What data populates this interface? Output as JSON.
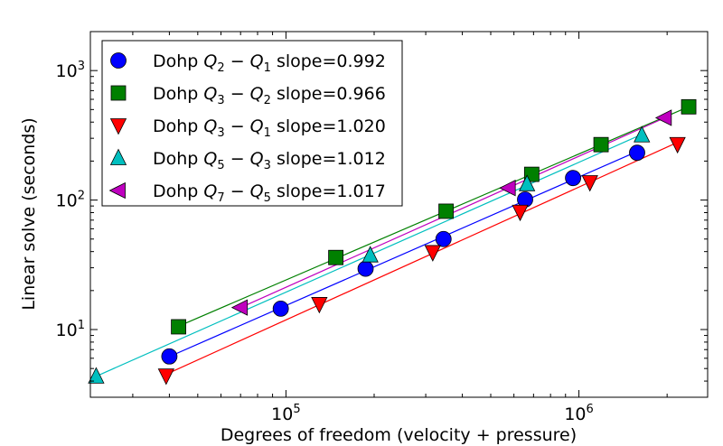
{
  "chart_data": {
    "type": "scatter",
    "title": "",
    "xlabel": "Degrees of freedom (velocity + pressure)",
    "ylabel": "Linear solve (seconds)",
    "xscale": "log",
    "yscale": "log",
    "xlim": [
      21500,
      2750000
    ],
    "ylim": [
      3.0,
      2000
    ],
    "xticks": [
      {
        "value": 100000,
        "base": "10",
        "exp": "5"
      },
      {
        "value": 1000000,
        "base": "10",
        "exp": "6"
      }
    ],
    "yticks": [
      {
        "value": 10,
        "base": "10",
        "exp": "1"
      },
      {
        "value": 100,
        "base": "10",
        "exp": "2"
      },
      {
        "value": 1000,
        "base": "10",
        "exp": "3"
      }
    ],
    "grid": false,
    "legend_position": "top-left",
    "series": [
      {
        "name": "Dohp Q2 − Q1 slope=0.992",
        "legend": {
          "prefix": "Dohp ",
          "a": "Q",
          "a_sub": "2",
          "op": " − ",
          "b": "Q",
          "b_sub": "1",
          "suffix": " slope=0.992"
        },
        "marker": "circle",
        "color": "#0000ff",
        "x": [
          40000,
          96000,
          187000,
          345000,
          655000,
          955000,
          1580000
        ],
        "y": [
          6.2,
          14.5,
          29.5,
          50,
          101,
          148,
          232
        ]
      },
      {
        "name": "Dohp Q3 − Q2 slope=0.966",
        "legend": {
          "prefix": "Dohp ",
          "a": "Q",
          "a_sub": "3",
          "op": " − ",
          "b": "Q",
          "b_sub": "2",
          "suffix": " slope=0.966"
        },
        "marker": "square",
        "color": "#008000",
        "x": [
          43000,
          148000,
          352000,
          690000,
          1190000,
          2370000
        ],
        "y": [
          10.5,
          36,
          82,
          158,
          268,
          525
        ]
      },
      {
        "name": "Dohp Q3 − Q1 slope=1.020",
        "legend": {
          "prefix": "Dohp ",
          "a": "Q",
          "a_sub": "3",
          "op": " − ",
          "b": "Q",
          "b_sub": "1",
          "suffix": " slope=1.020"
        },
        "marker": "triangle-down",
        "color": "#ff0000",
        "x": [
          39000,
          130000,
          317000,
          630000,
          1090000,
          2170000
        ],
        "y": [
          4.4,
          15.7,
          39.5,
          81,
          137,
          270
        ]
      },
      {
        "name": "Dohp Q5 − Q3 slope=1.012",
        "legend": {
          "prefix": "Dohp ",
          "a": "Q",
          "a_sub": "5",
          "op": " − ",
          "b": "Q",
          "b_sub": "3",
          "suffix": " slope=1.012"
        },
        "marker": "triangle-up",
        "color": "#00bfbf",
        "x": [
          22500,
          194000,
          665000,
          1640000
        ],
        "y": [
          4.35,
          37.5,
          133,
          317
        ]
      },
      {
        "name": "Dohp Q7 − Q5 slope=1.017",
        "legend": {
          "prefix": "Dohp ",
          "a": "Q",
          "a_sub": "7",
          "op": " − ",
          "b": "Q",
          "b_sub": "5",
          "suffix": " slope=1.017"
        },
        "marker": "triangle-left",
        "color": "#bf00bf",
        "x": [
          70000,
          575000,
          1960000
        ],
        "y": [
          14.8,
          124,
          432
        ]
      }
    ]
  }
}
